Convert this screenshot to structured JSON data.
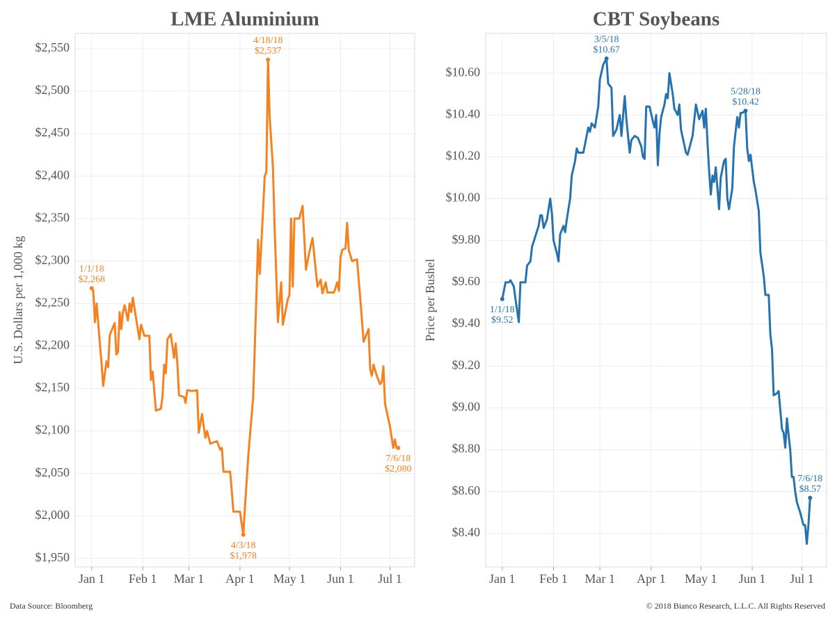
{
  "chart_data": [
    {
      "type": "line",
      "title": "LME Aluminium",
      "y_label": "U.S. Dollars per 1,000 kg",
      "color": "#f5821f",
      "grid": true,
      "xlim": [
        "2017-12-22",
        "2018-07-16"
      ],
      "xticks": [
        {
          "value": "2018-01-01",
          "label": "Jan 1"
        },
        {
          "value": "2018-02-01",
          "label": "Feb 1"
        },
        {
          "value": "2018-03-01",
          "label": "Mar 1"
        },
        {
          "value": "2018-04-01",
          "label": "Apr 1"
        },
        {
          "value": "2018-05-01",
          "label": "May 1"
        },
        {
          "value": "2018-06-01",
          "label": "Jun 1"
        },
        {
          "value": "2018-07-01",
          "label": "Jul 1"
        }
      ],
      "ylim": [
        1940,
        2568
      ],
      "yticks": [
        {
          "value": 1950,
          "label": "$1,950"
        },
        {
          "value": 2000,
          "label": "$2,000"
        },
        {
          "value": 2050,
          "label": "$2,050"
        },
        {
          "value": 2100,
          "label": "$2,100"
        },
        {
          "value": 2150,
          "label": "$2,150"
        },
        {
          "value": 2200,
          "label": "$2,200"
        },
        {
          "value": 2250,
          "label": "$2,250"
        },
        {
          "value": 2300,
          "label": "$2,300"
        },
        {
          "value": 2350,
          "label": "$2,350"
        },
        {
          "value": 2400,
          "label": "$2,400"
        },
        {
          "value": 2450,
          "label": "$2,450"
        },
        {
          "value": 2500,
          "label": "$2,500"
        },
        {
          "value": 2550,
          "label": "$2,550"
        }
      ],
      "x": [
        "2018-01-01",
        "2018-01-02",
        "2018-01-03",
        "2018-01-04",
        "2018-01-06",
        "2018-01-07",
        "2018-01-08",
        "2018-01-10",
        "2018-01-11",
        "2018-01-12",
        "2018-01-15",
        "2018-01-16",
        "2018-01-17",
        "2018-01-18",
        "2018-01-19",
        "2018-01-20",
        "2018-01-21",
        "2018-01-23",
        "2018-01-24",
        "2018-01-25",
        "2018-01-26",
        "2018-01-28",
        "2018-01-29",
        "2018-01-30",
        "2018-01-31",
        "2018-02-02",
        "2018-02-05",
        "2018-02-06",
        "2018-02-07",
        "2018-02-09",
        "2018-02-12",
        "2018-02-13",
        "2018-02-14",
        "2018-02-15",
        "2018-02-16",
        "2018-02-18",
        "2018-02-20",
        "2018-02-21",
        "2018-02-22",
        "2018-02-23",
        "2018-02-26",
        "2018-02-27",
        "2018-02-28",
        "2018-03-03",
        "2018-03-06",
        "2018-03-07",
        "2018-03-09",
        "2018-03-10",
        "2018-03-11",
        "2018-03-12",
        "2018-03-14",
        "2018-03-18",
        "2018-03-20",
        "2018-03-21",
        "2018-03-22",
        "2018-03-26",
        "2018-03-27",
        "2018-03-28",
        "2018-04-01",
        "2018-04-03",
        "2018-04-04",
        "2018-04-06",
        "2018-04-09",
        "2018-04-10",
        "2018-04-12",
        "2018-04-13",
        "2018-04-15",
        "2018-04-16",
        "2018-04-17",
        "2018-04-18",
        "2018-04-19",
        "2018-04-21",
        "2018-04-22",
        "2018-04-24",
        "2018-04-26",
        "2018-04-27",
        "2018-04-30",
        "2018-05-01",
        "2018-05-02",
        "2018-05-03",
        "2018-05-04",
        "2018-05-07",
        "2018-05-09",
        "2018-05-11",
        "2018-05-13",
        "2018-05-15",
        "2018-05-18",
        "2018-05-20",
        "2018-05-21",
        "2018-05-23",
        "2018-05-24",
        "2018-05-28",
        "2018-05-30",
        "2018-05-31",
        "2018-06-01",
        "2018-06-02",
        "2018-06-04",
        "2018-06-05",
        "2018-06-06",
        "2018-06-08",
        "2018-06-11",
        "2018-06-13",
        "2018-06-15",
        "2018-06-17",
        "2018-06-18",
        "2018-06-19",
        "2018-06-20",
        "2018-06-21",
        "2018-06-23",
        "2018-06-25",
        "2018-06-26",
        "2018-06-27",
        "2018-06-28",
        "2018-07-01",
        "2018-07-03",
        "2018-07-04",
        "2018-07-05",
        "2018-07-06"
      ],
      "values": [
        2268,
        2265,
        2228,
        2250,
        2203,
        2180,
        2153,
        2182,
        2175,
        2213,
        2227,
        2190,
        2193,
        2240,
        2220,
        2240,
        2248,
        2230,
        2250,
        2240,
        2257,
        2232,
        2220,
        2208,
        2225,
        2212,
        2212,
        2160,
        2170,
        2124,
        2126,
        2140,
        2178,
        2168,
        2208,
        2214,
        2186,
        2203,
        2180,
        2142,
        2140,
        2133,
        2148,
        2147,
        2148,
        2098,
        2120,
        2105,
        2092,
        2100,
        2085,
        2088,
        2078,
        2080,
        2052,
        2052,
        2030,
        2005,
        2005,
        1978,
        2010,
        2070,
        2140,
        2200,
        2325,
        2285,
        2360,
        2400,
        2405,
        2537,
        2470,
        2410,
        2340,
        2228,
        2275,
        2225,
        2255,
        2260,
        2350,
        2270,
        2350,
        2350,
        2365,
        2290,
        2310,
        2327,
        2270,
        2278,
        2262,
        2275,
        2263,
        2263,
        2275,
        2265,
        2305,
        2313,
        2315,
        2345,
        2313,
        2300,
        2302,
        2255,
        2205,
        2215,
        2220,
        2172,
        2165,
        2178,
        2165,
        2155,
        2158,
        2176,
        2132,
        2105,
        2080,
        2090,
        2080,
        2080
      ],
      "annotations": [
        {
          "x": "2018-01-01",
          "y": 2268,
          "lines": [
            "1/1/18",
            "$2,268"
          ],
          "position": "above"
        },
        {
          "x": "2018-04-18",
          "y": 2537,
          "lines": [
            "4/18/18",
            "$2,537"
          ],
          "position": "above"
        },
        {
          "x": "2018-04-03",
          "y": 1978,
          "lines": [
            "4/3/18",
            "$1,978"
          ],
          "position": "below"
        },
        {
          "x": "2018-07-06",
          "y": 2080,
          "lines": [
            "7/6/18",
            "$2,080"
          ],
          "position": "below"
        }
      ]
    },
    {
      "type": "line",
      "title": "CBT Soybeans",
      "y_label": "Price per Bushel",
      "color": "#2473b0",
      "grid": true,
      "xlim": [
        "2017-12-22",
        "2018-07-16"
      ],
      "xticks": [
        {
          "value": "2018-01-01",
          "label": "Jan 1"
        },
        {
          "value": "2018-02-01",
          "label": "Feb 1"
        },
        {
          "value": "2018-03-01",
          "label": "Mar 1"
        },
        {
          "value": "2018-04-01",
          "label": "Apr 1"
        },
        {
          "value": "2018-05-01",
          "label": "May 1"
        },
        {
          "value": "2018-06-01",
          "label": "Jun 1"
        },
        {
          "value": "2018-07-01",
          "label": "Jul 1"
        }
      ],
      "ylim": [
        8.24,
        10.79
      ],
      "yticks": [
        {
          "value": 8.4,
          "label": "$8.40"
        },
        {
          "value": 8.6,
          "label": "$8.60"
        },
        {
          "value": 8.8,
          "label": "$8.80"
        },
        {
          "value": 9.0,
          "label": "$9.00"
        },
        {
          "value": 9.2,
          "label": "$9.20"
        },
        {
          "value": 9.4,
          "label": "$9.40"
        },
        {
          "value": 9.6,
          "label": "$9.60"
        },
        {
          "value": 9.8,
          "label": "$9.80"
        },
        {
          "value": 10.0,
          "label": "$10.00"
        },
        {
          "value": 10.2,
          "label": "$10.20"
        },
        {
          "value": 10.4,
          "label": "$10.40"
        },
        {
          "value": 10.6,
          "label": "$10.60"
        }
      ],
      "x": [
        "2018-01-01",
        "2018-01-03",
        "2018-01-05",
        "2018-01-06",
        "2018-01-08",
        "2018-01-09",
        "2018-01-11",
        "2018-01-12",
        "2018-01-15",
        "2018-01-16",
        "2018-01-18",
        "2018-01-19",
        "2018-01-21",
        "2018-01-23",
        "2018-01-24",
        "2018-01-25",
        "2018-01-26",
        "2018-01-28",
        "2018-01-30",
        "2018-01-31",
        "2018-02-01",
        "2018-02-03",
        "2018-02-04",
        "2018-02-05",
        "2018-02-07",
        "2018-02-08",
        "2018-02-09",
        "2018-02-11",
        "2018-02-12",
        "2018-02-14",
        "2018-02-15",
        "2018-02-16",
        "2018-02-19",
        "2018-02-21",
        "2018-02-22",
        "2018-02-23",
        "2018-02-24",
        "2018-02-26",
        "2018-02-28",
        "2018-03-01",
        "2018-03-03",
        "2018-03-05",
        "2018-03-06",
        "2018-03-08",
        "2018-03-09",
        "2018-03-11",
        "2018-03-13",
        "2018-03-14",
        "2018-03-16",
        "2018-03-17",
        "2018-03-19",
        "2018-03-20",
        "2018-03-22",
        "2018-03-24",
        "2018-03-26",
        "2018-03-27",
        "2018-03-28",
        "2018-03-29",
        "2018-03-31",
        "2018-04-02",
        "2018-04-03",
        "2018-04-04",
        "2018-04-05",
        "2018-04-06",
        "2018-04-07",
        "2018-04-09",
        "2018-04-10",
        "2018-04-11",
        "2018-04-12",
        "2018-04-14",
        "2018-04-15",
        "2018-04-17",
        "2018-04-18",
        "2018-04-19",
        "2018-04-22",
        "2018-04-23",
        "2018-04-25",
        "2018-04-26",
        "2018-04-28",
        "2018-04-30",
        "2018-05-02",
        "2018-05-03",
        "2018-05-04",
        "2018-05-05",
        "2018-05-06",
        "2018-05-07",
        "2018-05-08",
        "2018-05-09",
        "2018-05-10",
        "2018-05-12",
        "2018-05-13",
        "2018-05-15",
        "2018-05-16",
        "2018-05-17",
        "2018-05-18",
        "2018-05-20",
        "2018-05-21",
        "2018-05-23",
        "2018-05-24",
        "2018-05-25",
        "2018-05-26",
        "2018-05-28",
        "2018-05-29",
        "2018-05-30",
        "2018-05-31",
        "2018-06-02",
        "2018-06-03",
        "2018-06-05",
        "2018-06-06",
        "2018-06-08",
        "2018-06-09",
        "2018-06-11",
        "2018-06-12",
        "2018-06-13",
        "2018-06-14",
        "2018-06-16",
        "2018-06-17",
        "2018-06-19",
        "2018-06-20",
        "2018-06-21",
        "2018-06-22",
        "2018-06-23",
        "2018-06-24",
        "2018-06-25",
        "2018-06-26",
        "2018-06-27",
        "2018-06-28",
        "2018-06-30",
        "2018-07-02",
        "2018-07-03",
        "2018-07-04",
        "2018-07-05",
        "2018-07-06"
      ],
      "values": [
        9.52,
        9.6,
        9.6,
        9.61,
        9.58,
        9.52,
        9.41,
        9.6,
        9.6,
        9.68,
        9.7,
        9.77,
        9.82,
        9.87,
        9.92,
        9.92,
        9.86,
        9.9,
        10.0,
        9.93,
        9.8,
        9.74,
        9.7,
        9.83,
        9.87,
        9.84,
        9.9,
        10.0,
        10.11,
        10.18,
        10.24,
        10.22,
        10.22,
        10.3,
        10.34,
        10.32,
        10.36,
        10.34,
        10.44,
        10.57,
        10.64,
        10.67,
        10.55,
        10.53,
        10.3,
        10.33,
        10.4,
        10.3,
        10.49,
        10.38,
        10.22,
        10.28,
        10.3,
        10.29,
        10.25,
        10.2,
        10.19,
        10.44,
        10.44,
        10.37,
        10.34,
        10.4,
        10.16,
        10.31,
        10.39,
        10.45,
        10.5,
        10.48,
        10.6,
        10.5,
        10.43,
        10.4,
        10.45,
        10.33,
        10.22,
        10.21,
        10.27,
        10.3,
        10.45,
        10.38,
        10.42,
        10.34,
        10.43,
        10.27,
        10.13,
        10.02,
        10.11,
        10.08,
        10.15,
        9.95,
        10.1,
        10.18,
        10.19,
        10.0,
        9.95,
        10.05,
        10.25,
        10.39,
        10.34,
        10.41,
        10.41,
        10.42,
        10.24,
        10.18,
        10.21,
        10.08,
        10.04,
        9.94,
        9.74,
        9.63,
        9.54,
        9.54,
        9.35,
        9.28,
        9.06,
        9.07,
        9.08,
        8.9,
        8.88,
        8.81,
        8.95,
        8.87,
        8.8,
        8.67,
        8.67,
        8.6,
        8.55,
        8.5,
        8.44,
        8.44,
        8.35,
        8.44,
        8.57
      ],
      "annotations": [
        {
          "x": "2018-01-01",
          "y": 9.52,
          "lines": [
            "1/1/18",
            "$9.52"
          ],
          "position": "below"
        },
        {
          "x": "2018-03-05",
          "y": 10.67,
          "lines": [
            "3/5/18",
            "$10.67"
          ],
          "position": "above"
        },
        {
          "x": "2018-05-28",
          "y": 10.42,
          "lines": [
            "5/28/18",
            "$10.42"
          ],
          "position": "above"
        },
        {
          "x": "2018-07-06",
          "y": 8.57,
          "lines": [
            "7/6/18",
            "$8.57"
          ],
          "position": "above"
        }
      ]
    }
  ],
  "footer": {
    "source": "Data Source: Bloomberg",
    "copyright": "© 2018 Bianco Research, L.L.C. All Rights Reserved"
  }
}
